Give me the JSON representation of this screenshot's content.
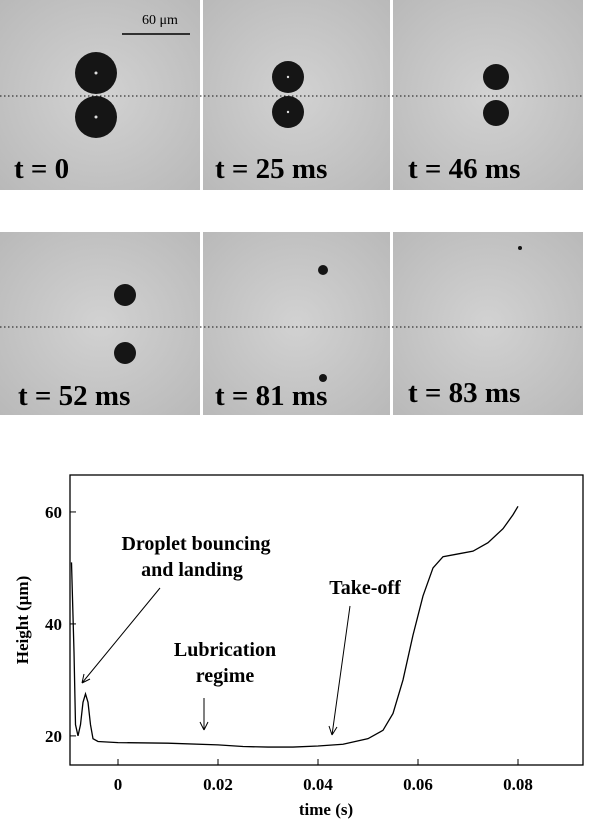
{
  "panels": [
    {
      "label": "t = 0"
    },
    {
      "label": "t = 25 ms"
    },
    {
      "label": "t = 46 ms"
    },
    {
      "label": "t = 52 ms"
    },
    {
      "label": "t = 81 ms"
    },
    {
      "label": "t = 83 ms"
    }
  ],
  "scale_bar": "60 μm",
  "chart_data": {
    "type": "line",
    "x_label": "time (s)",
    "y_label": "Height (μm)",
    "annotations": [
      "Droplet bouncing",
      "and landing",
      "Lubrication",
      "regime",
      "Take-off"
    ],
    "xlim": [
      -0.0096,
      0.093
    ],
    "ylim": [
      14.8,
      66.6
    ],
    "xticks": [
      0,
      0.02,
      0.04,
      0.06,
      0.08
    ],
    "yticks": [
      20,
      40,
      60
    ],
    "x": [
      -0.0093,
      -0.0088,
      -0.0085,
      -0.008,
      -0.0075,
      -0.007,
      -0.0065,
      -0.006,
      -0.0055,
      -0.005,
      -0.004,
      0,
      0.01,
      0.02,
      0.025,
      0.03,
      0.035,
      0.04,
      0.045,
      0.05,
      0.053,
      0.055,
      0.057,
      0.059,
      0.061,
      0.063,
      0.065,
      0.068,
      0.071,
      0.074,
      0.077,
      0.079,
      0.08
    ],
    "series": [
      {
        "name": "height",
        "color": "#000000",
        "values": [
          51,
          35,
          22,
          20,
          22,
          26,
          27.5,
          26,
          22,
          19.5,
          19,
          18.8,
          18.7,
          18.4,
          18.1,
          18.0,
          18.0,
          18.2,
          18.5,
          19.5,
          21,
          24,
          30,
          38,
          45,
          50,
          52,
          52.5,
          53,
          54.5,
          57,
          59.5,
          61
        ]
      }
    ]
  }
}
